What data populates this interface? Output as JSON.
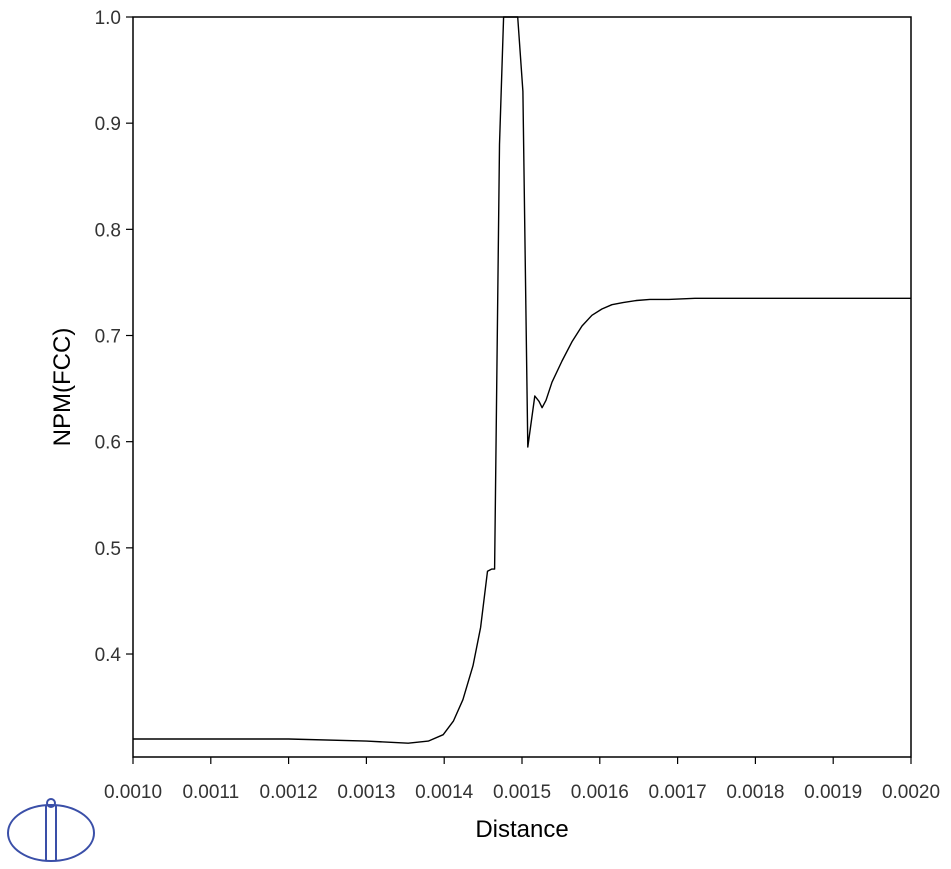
{
  "chart_data": {
    "type": "line",
    "xlabel": "Distance",
    "ylabel": "NPM(FCC)",
    "xlim": [
      0.001,
      0.002
    ],
    "ylim": [
      0.303,
      1.0
    ],
    "grid": false,
    "legend": "none",
    "x_ticks": [
      "0.0010",
      "0.0011",
      "0.0012",
      "0.0013",
      "0.0014",
      "0.0015",
      "0.0016",
      "0.0017",
      "0.0018",
      "0.0019",
      "0.0020"
    ],
    "y_ticks": [
      "0.4",
      "0.5",
      "0.6",
      "0.7",
      "0.8",
      "0.9",
      "1.0"
    ],
    "series": [
      {
        "color": "#000000",
        "x": [
          0.001,
          0.0012,
          0.0013,
          0.0013537,
          0.0013795,
          0.0013987,
          0.001412,
          0.001424,
          0.001437,
          0.0014468,
          0.0014557,
          0.0014609,
          0.0014648,
          0.0014711,
          0.0014764,
          0.0014786,
          0.0014826,
          0.001487,
          0.0014945,
          0.0015012,
          0.0015075,
          0.0015165,
          0.0015218,
          0.0015258,
          0.0015308,
          0.0015385,
          0.0015514,
          0.0015642,
          0.0015771,
          0.0015899,
          0.0016027,
          0.0016156,
          0.0016298,
          0.0016472,
          0.0016644,
          0.0016888,
          0.0017222,
          0.0018,
          0.0019,
          0.002
        ],
        "y": [
          0.32,
          0.32,
          0.318,
          0.316,
          0.318,
          0.324,
          0.337,
          0.357,
          0.389,
          0.425,
          0.478,
          0.48,
          0.48,
          0.88,
          1.0,
          1.0,
          1.0,
          1.0,
          1.0,
          0.93,
          0.595,
          0.643,
          0.638,
          0.632,
          0.639,
          0.656,
          0.676,
          0.694,
          0.709,
          0.719,
          0.725,
          0.729,
          0.731,
          0.733,
          0.734,
          0.734,
          0.735,
          0.735,
          0.735,
          0.735
        ]
      }
    ]
  },
  "logo": {
    "name": "thermo-calc-logo-icon"
  }
}
